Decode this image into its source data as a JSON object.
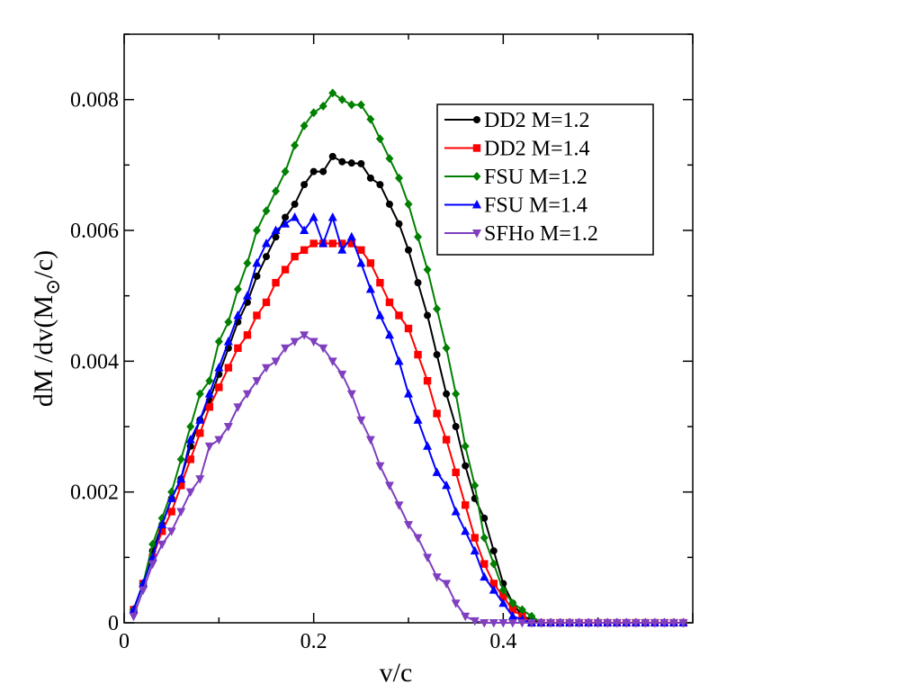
{
  "chart_data": {
    "type": "line",
    "title": "",
    "xlabel": "v/c",
    "ylabel": "dM /dv(M",
    "ylabel_sub": "⊙",
    "ylabel_tail": "/c)",
    "xlim": [
      0,
      0.6
    ],
    "ylim": [
      0,
      0.009
    ],
    "x_major_ticks": [
      0,
      0.2,
      0.4
    ],
    "x_tick_labels": [
      "0",
      "0.2",
      "0.4"
    ],
    "y_major_ticks": [
      0,
      0.002,
      0.004,
      0.006,
      0.008
    ],
    "y_tick_labels": [
      "0",
      "0.002",
      "0.004",
      "0.006",
      "0.008"
    ],
    "grid": false,
    "legend_position": "top-right",
    "x": [
      0.01,
      0.02,
      0.03,
      0.04,
      0.05,
      0.06,
      0.07,
      0.08,
      0.09,
      0.1,
      0.11,
      0.12,
      0.13,
      0.14,
      0.15,
      0.16,
      0.17,
      0.18,
      0.19,
      0.2,
      0.21,
      0.22,
      0.23,
      0.24,
      0.25,
      0.26,
      0.27,
      0.28,
      0.29,
      0.3,
      0.31,
      0.32,
      0.33,
      0.34,
      0.35,
      0.36,
      0.37,
      0.38,
      0.39,
      0.4,
      0.41,
      0.42,
      0.43,
      0.44,
      0.45,
      0.46,
      0.47,
      0.48,
      0.49,
      0.5,
      0.51,
      0.52,
      0.53,
      0.54,
      0.55,
      0.56,
      0.57,
      0.58,
      0.59
    ],
    "series": [
      {
        "name": "DD2 M=1.2",
        "color": "#000000",
        "marker": "circle",
        "values": [
          0.0002,
          0.0006,
          0.0011,
          0.0015,
          0.0019,
          0.0022,
          0.0027,
          0.0031,
          0.0034,
          0.0038,
          0.0042,
          0.0046,
          0.0049,
          0.0053,
          0.0056,
          0.0059,
          0.0062,
          0.0064,
          0.0067,
          0.0069,
          0.0069,
          0.00713,
          0.00705,
          0.00703,
          0.00702,
          0.0068,
          0.0067,
          0.0064,
          0.0061,
          0.0057,
          0.0052,
          0.0047,
          0.0041,
          0.0035,
          0.003,
          0.0024,
          0.0019,
          0.0016,
          0.0011,
          0.0006,
          0.0003,
          0.0001,
          5e-05,
          0,
          0,
          0,
          0,
          0,
          0,
          0,
          0,
          0,
          0,
          0,
          0,
          0,
          0,
          0,
          0
        ]
      },
      {
        "name": "DD2 M=1.4",
        "color": "#ff0000",
        "marker": "square",
        "values": [
          0.0002,
          0.0006,
          0.001,
          0.0014,
          0.0017,
          0.0021,
          0.0025,
          0.0029,
          0.0033,
          0.0036,
          0.0039,
          0.0042,
          0.0044,
          0.0047,
          0.0049,
          0.0052,
          0.0054,
          0.0056,
          0.0057,
          0.0058,
          0.0058,
          0.0058,
          0.0058,
          0.0058,
          0.0057,
          0.0055,
          0.0052,
          0.0049,
          0.0047,
          0.0045,
          0.0041,
          0.0037,
          0.0032,
          0.0028,
          0.0023,
          0.0018,
          0.0013,
          0.0009,
          0.0006,
          0.0004,
          0.0002,
          0.0001,
          0,
          0,
          0,
          0,
          0,
          0,
          0,
          0,
          0,
          0,
          0,
          0,
          0,
          0,
          0,
          0,
          0
        ]
      },
      {
        "name": "FSU M=1.2",
        "color": "#008000",
        "marker": "diamond",
        "values": [
          0.0002,
          0.0006,
          0.0012,
          0.0016,
          0.002,
          0.0025,
          0.003,
          0.0035,
          0.0037,
          0.0043,
          0.0046,
          0.0051,
          0.0055,
          0.006,
          0.0063,
          0.0066,
          0.0069,
          0.0073,
          0.0076,
          0.0078,
          0.0079,
          0.0081,
          0.008,
          0.00792,
          0.00792,
          0.0077,
          0.0074,
          0.0071,
          0.0068,
          0.0064,
          0.0059,
          0.0054,
          0.0048,
          0.0042,
          0.0035,
          0.0027,
          0.0021,
          0.0013,
          0.0009,
          0.0005,
          0.0003,
          0.0002,
          0.0001,
          0,
          0,
          0,
          0,
          0,
          0,
          0,
          0,
          0,
          0,
          0,
          0,
          0,
          0,
          0,
          0
        ]
      },
      {
        "name": "FSU M=1.4",
        "color": "#0000ff",
        "marker": "triangle-up",
        "values": [
          0.0002,
          0.0006,
          0.001,
          0.0015,
          0.0019,
          0.0022,
          0.0028,
          0.0031,
          0.0035,
          0.0039,
          0.0043,
          0.0047,
          0.005,
          0.0055,
          0.0058,
          0.006,
          0.0061,
          0.0062,
          0.006,
          0.0062,
          0.0058,
          0.0062,
          0.0057,
          0.0059,
          0.0055,
          0.0051,
          0.0047,
          0.0044,
          0.004,
          0.0035,
          0.0031,
          0.0027,
          0.0023,
          0.0021,
          0.0017,
          0.0014,
          0.0011,
          0.0007,
          0.0005,
          0.0003,
          0.0001,
          5e-05,
          0,
          0,
          0,
          0,
          0,
          0,
          0,
          0,
          0,
          0,
          0,
          0,
          0,
          0,
          0,
          0,
          0
        ]
      },
      {
        "name": "SFHo M=1.2",
        "color": "#7f3fbf",
        "marker": "triangle-down",
        "values": [
          0.0001,
          0.0005,
          0.0009,
          0.0012,
          0.0014,
          0.0017,
          0.002,
          0.0022,
          0.0027,
          0.0028,
          0.003,
          0.0033,
          0.0035,
          0.0037,
          0.0039,
          0.004,
          0.0042,
          0.0043,
          0.0044,
          0.0043,
          0.0042,
          0.004,
          0.0038,
          0.0035,
          0.0031,
          0.0028,
          0.0024,
          0.0021,
          0.0018,
          0.0015,
          0.0013,
          0.001,
          0.0007,
          0.0006,
          0.0003,
          0.0001,
          3e-05,
          0,
          0,
          0,
          0,
          0,
          0,
          0,
          0,
          0,
          0,
          0,
          0,
          0,
          0,
          0,
          0,
          0,
          0,
          0,
          0,
          0,
          0
        ]
      }
    ]
  }
}
